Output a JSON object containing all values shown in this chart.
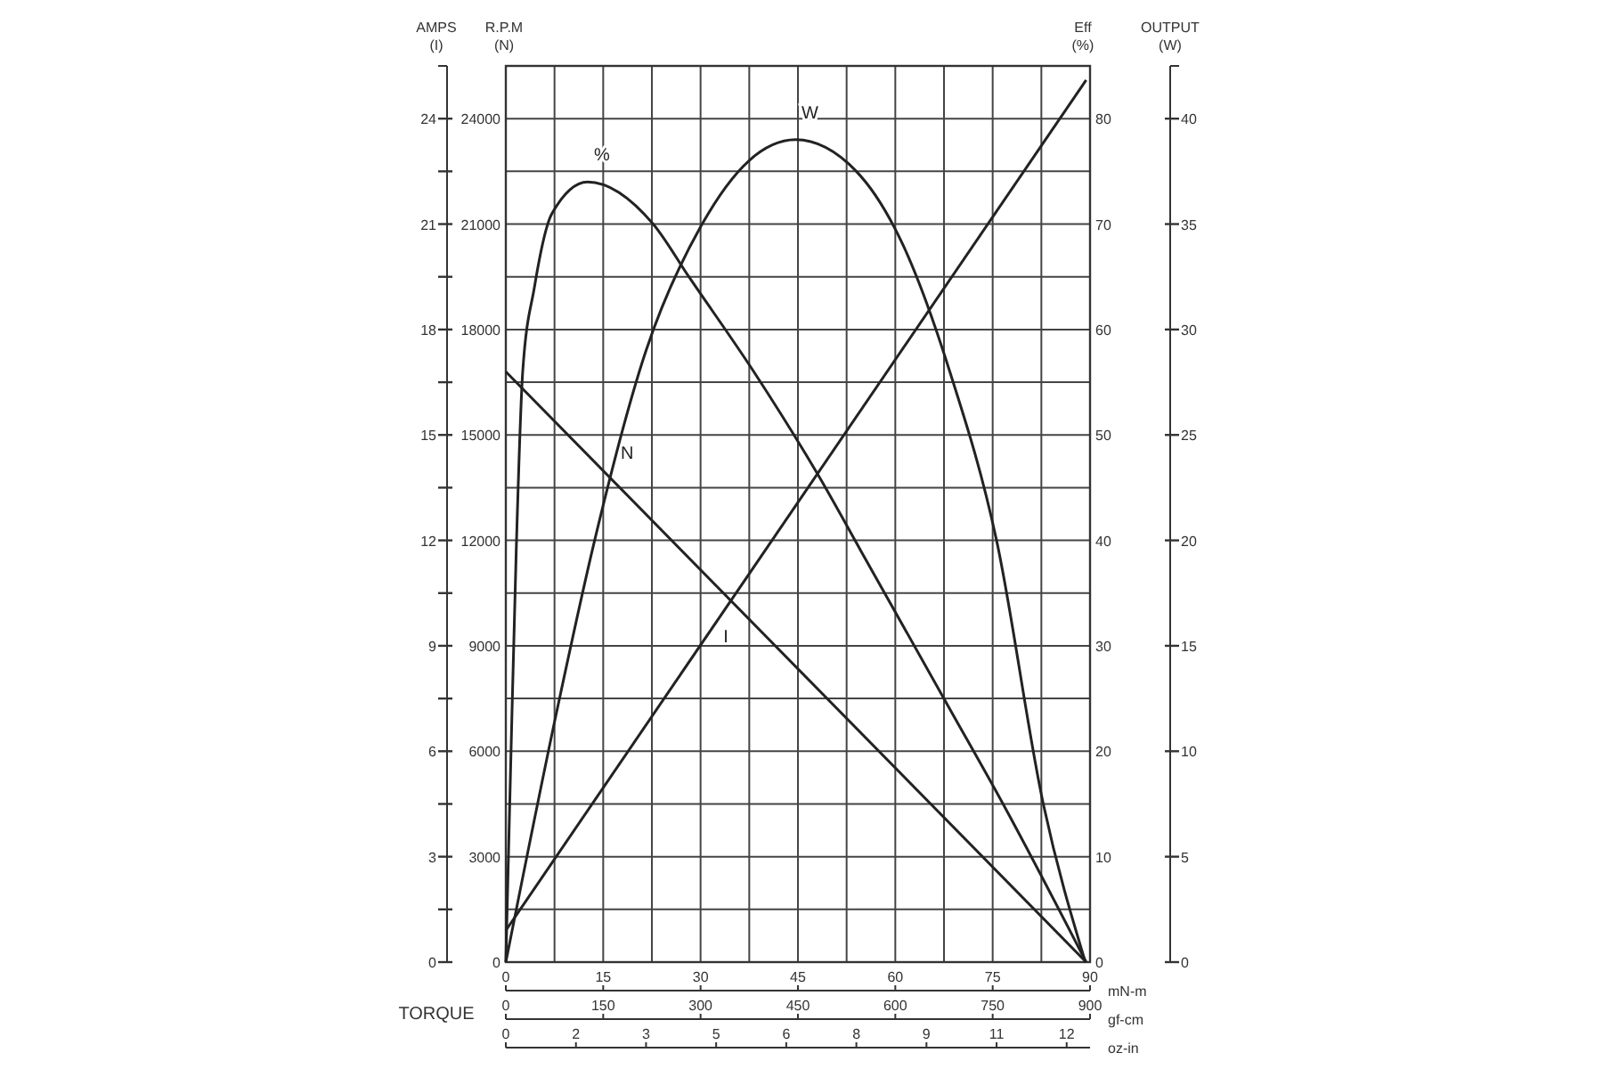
{
  "chart_data": [
    {
      "type": "line",
      "xlabel": "mN-m",
      "x2label": "gf-cm",
      "ylabel": "R.P.M\n(N)",
      "y2label": "Eff\n(%)",
      "y3label": "AMPS\n(I)",
      "annotations": [
        "TORQUE"
      ],
      "xlim": [
        0,
        90
      ],
      "x2lim": [
        0,
        900
      ],
      "xticks": [
        0,
        {
          "value": 7.5,
          "label": null
        },
        15,
        {
          "value": 22.5,
          "label": null
        },
        30,
        {
          "value": 37.5,
          "label": null
        },
        45,
        {
          "value": 52.5,
          "label": null
        },
        60,
        {
          "value": 67.5,
          "label": null
        },
        75,
        {
          "value": 82.5,
          "label": null
        },
        90
      ],
      "x2ticks": [
        0,
        150,
        300,
        450,
        600,
        750,
        900
      ],
      "ylim": [
        0,
        25500
      ],
      "yticks": [
        0,
        {
          "value": 1500,
          "label": null
        },
        3000,
        {
          "value": 4500,
          "label": null
        },
        6000,
        {
          "value": 7500,
          "label": null
        },
        9000,
        {
          "value": 10500,
          "label": null
        },
        12000,
        {
          "value": 13500,
          "label": null
        },
        15000,
        {
          "value": 16500,
          "label": null
        },
        18000,
        {
          "value": 19500,
          "label": null
        },
        21000,
        {
          "value": 22500,
          "label": null
        },
        24000
      ],
      "y2lim": [
        0,
        85
      ],
      "y2ticks": [
        0,
        10,
        20,
        30,
        40,
        50,
        60,
        70,
        80
      ],
      "y3lim": [
        0,
        25.5
      ],
      "y3ticks": [
        0,
        {
          "value": 1.5,
          "label": null
        },
        3,
        {
          "value": 4.5,
          "label": null
        },
        6,
        {
          "value": 7.5,
          "label": null
        },
        9,
        {
          "value": 10.5,
          "label": null
        },
        12,
        {
          "value": 13.5,
          "label": null
        },
        15,
        {
          "value": 16.5,
          "label": null
        },
        18,
        {
          "value": 19.5,
          "label": null
        },
        21,
        {
          "value": 22.5,
          "label": null
        },
        24
      ],
      "grid": true,
      "marker": "none",
      "line_style": "solid",
      "series": [
        {
          "name": "N",
          "axis": "y",
          "color": "#222222",
          "x": [
            0,
            89.4
          ],
          "values": [
            16800,
            0
          ]
        },
        {
          "name": "I",
          "axis": "y3",
          "color": "#222222",
          "x": [
            0,
            89.4
          ],
          "values": [
            0.9,
            25.1
          ]
        },
        {
          "name": "%",
          "axis": "y2",
          "color": "#222222",
          "x": [
            0,
            0.8,
            1.6,
            2.6,
            4.4,
            7.1,
            12.6,
            22.7,
            28.2,
            38.2,
            48.3,
            54.7,
            68.4,
            76.6,
            89.4
          ],
          "values": [
            0,
            20,
            39,
            56,
            64,
            71,
            74,
            70,
            65,
            56,
            46,
            39,
            24,
            15,
            0
          ]
        }
      ]
    },
    {
      "type": "line",
      "xlabel": "oz-in",
      "ylabel": "OUTPUT\n(W)",
      "xlim": [
        0,
        12.5
      ],
      "xticks": [
        0,
        {
          "value": 1.5,
          "label": "2"
        },
        {
          "value": 3,
          "label": "3"
        },
        {
          "value": 4.5,
          "label": "5"
        },
        {
          "value": 6,
          "label": "6"
        },
        {
          "value": 7.5,
          "label": "8"
        },
        {
          "value": 9,
          "label": "9"
        },
        {
          "value": 10.5,
          "label": "11"
        },
        {
          "value": 12,
          "label": "12"
        }
      ],
      "ylim": [
        0,
        42.5
      ],
      "yticks": [
        0,
        5,
        10,
        15,
        20,
        25,
        30,
        35,
        40
      ],
      "marker": "none",
      "line_style": "solid",
      "series": [
        {
          "name": "W",
          "color": "#222222",
          "x": [
            0,
            1.1,
            1.9,
            3,
            4.2,
            5.2,
            6.2,
            7.5,
            8.5,
            9.5,
            10.5,
            11.5,
            12.4
          ],
          "values": [
            0,
            12,
            20,
            29,
            35,
            38,
            39,
            37.5,
            34,
            28,
            20,
            7.5,
            0
          ]
        }
      ]
    }
  ]
}
